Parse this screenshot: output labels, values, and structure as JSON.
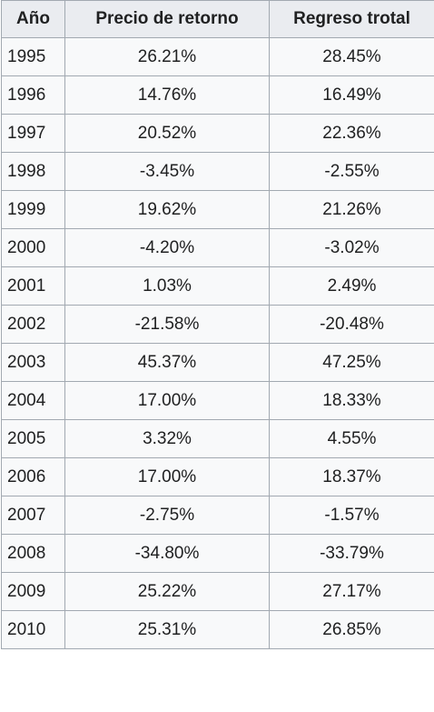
{
  "headers": [
    "Año",
    "Precio de retorno",
    "Regreso trotal"
  ],
  "rows": [
    {
      "year": "1995",
      "price": "26.21%",
      "total": "28.45%"
    },
    {
      "year": "1996",
      "price": "14.76%",
      "total": "16.49%"
    },
    {
      "year": "1997",
      "price": "20.52%",
      "total": "22.36%"
    },
    {
      "year": "1998",
      "price": "-3.45%",
      "total": "-2.55%"
    },
    {
      "year": "1999",
      "price": "19.62%",
      "total": "21.26%"
    },
    {
      "year": "2000",
      "price": "-4.20%",
      "total": "-3.02%"
    },
    {
      "year": "2001",
      "price": "1.03%",
      "total": "2.49%"
    },
    {
      "year": "2002",
      "price": "-21.58%",
      "total": "-20.48%"
    },
    {
      "year": "2003",
      "price": "45.37%",
      "total": "47.25%"
    },
    {
      "year": "2004",
      "price": "17.00%",
      "total": "18.33%"
    },
    {
      "year": "2005",
      "price": "3.32%",
      "total": "4.55%"
    },
    {
      "year": "2006",
      "price": "17.00%",
      "total": "18.37%"
    },
    {
      "year": "2007",
      "price": "-2.75%",
      "total": "-1.57%"
    },
    {
      "year": "2008",
      "price": "-34.80%",
      "total": "-33.79%"
    },
    {
      "year": "2009",
      "price": "25.22%",
      "total": "27.17%"
    },
    {
      "year": "2010",
      "price": "25.31%",
      "total": "26.85%"
    }
  ]
}
